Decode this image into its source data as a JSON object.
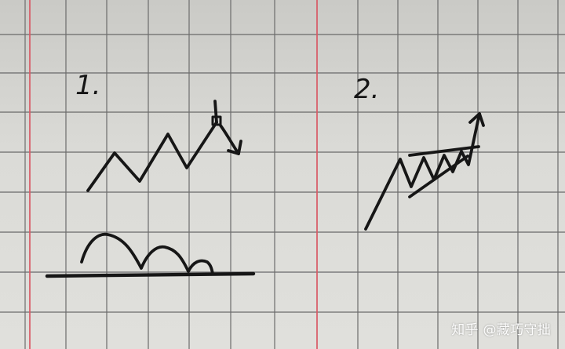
{
  "labels": {
    "first": "1.",
    "second": "2."
  },
  "watermark": "知乎 @藏巧守拙",
  "colors": {
    "paper": "#dcdcd8",
    "grid_line": "#6f6f6f",
    "margin_line": "#e35c68",
    "ink": "#151515"
  }
}
